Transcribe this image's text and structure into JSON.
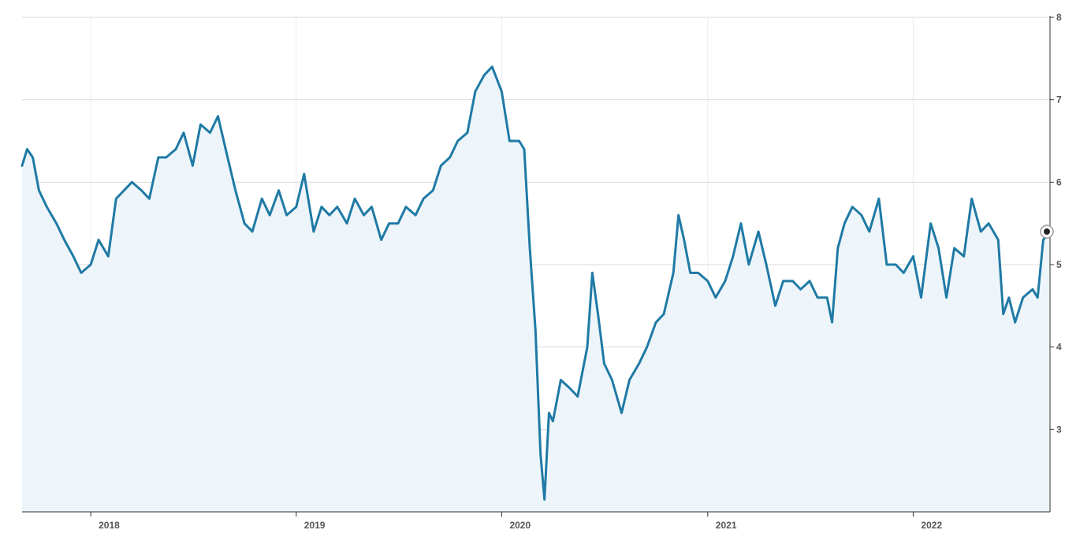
{
  "chart_data": {
    "type": "area",
    "xlabel": "",
    "ylabel": "",
    "x_range": [
      "2017-09-01",
      "2022-09-01"
    ],
    "ylim": [
      2,
      8
    ],
    "yticks": [
      3,
      4,
      5,
      6,
      7,
      8
    ],
    "xticks": [
      "2018",
      "2019",
      "2020",
      "2021",
      "2022"
    ],
    "grid": true,
    "y_axis_side": "right",
    "colors": {
      "line": "#1f7aa5",
      "fill": "#eef5fa",
      "marker": "#222222"
    },
    "series": [
      {
        "points": [
          [
            "2017-09-01",
            6.2
          ],
          [
            "2017-09-10",
            6.4
          ],
          [
            "2017-09-20",
            6.3
          ],
          [
            "2017-10-01",
            5.9
          ],
          [
            "2017-10-15",
            5.7
          ],
          [
            "2017-11-01",
            5.5
          ],
          [
            "2017-11-15",
            5.3
          ],
          [
            "2017-12-01",
            5.1
          ],
          [
            "2017-12-15",
            4.9
          ],
          [
            "2018-01-01",
            5.0
          ],
          [
            "2018-01-15",
            5.3
          ],
          [
            "2018-02-01",
            5.1
          ],
          [
            "2018-02-15",
            5.8
          ],
          [
            "2018-03-01",
            5.9
          ],
          [
            "2018-03-15",
            6.0
          ],
          [
            "2018-04-01",
            5.9
          ],
          [
            "2018-04-15",
            5.8
          ],
          [
            "2018-05-01",
            6.3
          ],
          [
            "2018-05-15",
            6.3
          ],
          [
            "2018-06-01",
            6.4
          ],
          [
            "2018-06-15",
            6.6
          ],
          [
            "2018-07-01",
            6.2
          ],
          [
            "2018-07-15",
            6.7
          ],
          [
            "2018-08-01",
            6.6
          ],
          [
            "2018-08-15",
            6.8
          ],
          [
            "2018-09-01",
            6.3
          ],
          [
            "2018-09-15",
            5.9
          ],
          [
            "2018-10-01",
            5.5
          ],
          [
            "2018-10-15",
            5.4
          ],
          [
            "2018-11-01",
            5.8
          ],
          [
            "2018-11-15",
            5.6
          ],
          [
            "2018-12-01",
            5.9
          ],
          [
            "2018-12-15",
            5.6
          ],
          [
            "2019-01-01",
            5.7
          ],
          [
            "2019-01-15",
            6.1
          ],
          [
            "2019-02-01",
            5.4
          ],
          [
            "2019-02-15",
            5.7
          ],
          [
            "2019-03-01",
            5.6
          ],
          [
            "2019-03-15",
            5.7
          ],
          [
            "2019-04-01",
            5.5
          ],
          [
            "2019-04-15",
            5.8
          ],
          [
            "2019-05-01",
            5.6
          ],
          [
            "2019-05-15",
            5.7
          ],
          [
            "2019-06-01",
            5.3
          ],
          [
            "2019-06-15",
            5.5
          ],
          [
            "2019-07-01",
            5.5
          ],
          [
            "2019-07-15",
            5.7
          ],
          [
            "2019-08-01",
            5.6
          ],
          [
            "2019-08-15",
            5.8
          ],
          [
            "2019-09-01",
            5.9
          ],
          [
            "2019-09-15",
            6.2
          ],
          [
            "2019-10-01",
            6.3
          ],
          [
            "2019-10-15",
            6.5
          ],
          [
            "2019-11-01",
            6.6
          ],
          [
            "2019-11-15",
            7.1
          ],
          [
            "2019-12-01",
            7.3
          ],
          [
            "2019-12-15",
            7.4
          ],
          [
            "2020-01-01",
            7.1
          ],
          [
            "2020-01-15",
            6.5
          ],
          [
            "2020-02-01",
            6.5
          ],
          [
            "2020-02-10",
            6.4
          ],
          [
            "2020-02-20",
            5.2
          ],
          [
            "2020-03-01",
            4.2
          ],
          [
            "2020-03-10",
            2.7
          ],
          [
            "2020-03-17",
            2.15
          ],
          [
            "2020-03-25",
            3.2
          ],
          [
            "2020-04-01",
            3.1
          ],
          [
            "2020-04-15",
            3.6
          ],
          [
            "2020-05-01",
            3.5
          ],
          [
            "2020-05-15",
            3.4
          ],
          [
            "2020-06-01",
            4.0
          ],
          [
            "2020-06-10",
            4.9
          ],
          [
            "2020-06-20",
            4.4
          ],
          [
            "2020-07-01",
            3.8
          ],
          [
            "2020-07-15",
            3.6
          ],
          [
            "2020-08-01",
            3.2
          ],
          [
            "2020-08-15",
            3.6
          ],
          [
            "2020-09-01",
            3.8
          ],
          [
            "2020-09-15",
            4.0
          ],
          [
            "2020-10-01",
            4.3
          ],
          [
            "2020-10-15",
            4.4
          ],
          [
            "2020-11-01",
            4.9
          ],
          [
            "2020-11-10",
            5.6
          ],
          [
            "2020-11-20",
            5.3
          ],
          [
            "2020-12-01",
            4.9
          ],
          [
            "2020-12-15",
            4.9
          ],
          [
            "2021-01-01",
            4.8
          ],
          [
            "2021-01-15",
            4.6
          ],
          [
            "2021-02-01",
            4.8
          ],
          [
            "2021-02-15",
            5.1
          ],
          [
            "2021-03-01",
            5.5
          ],
          [
            "2021-03-15",
            5.0
          ],
          [
            "2021-04-01",
            5.4
          ],
          [
            "2021-04-15",
            5.0
          ],
          [
            "2021-05-01",
            4.5
          ],
          [
            "2021-05-15",
            4.8
          ],
          [
            "2021-06-01",
            4.8
          ],
          [
            "2021-06-15",
            4.7
          ],
          [
            "2021-07-01",
            4.8
          ],
          [
            "2021-07-15",
            4.6
          ],
          [
            "2021-08-01",
            4.6
          ],
          [
            "2021-08-10",
            4.3
          ],
          [
            "2021-08-20",
            5.2
          ],
          [
            "2021-09-01",
            5.5
          ],
          [
            "2021-09-15",
            5.7
          ],
          [
            "2021-10-01",
            5.6
          ],
          [
            "2021-10-15",
            5.4
          ],
          [
            "2021-11-01",
            5.8
          ],
          [
            "2021-11-15",
            5.0
          ],
          [
            "2021-12-01",
            5.0
          ],
          [
            "2021-12-15",
            4.9
          ],
          [
            "2022-01-01",
            5.1
          ],
          [
            "2022-01-15",
            4.6
          ],
          [
            "2022-02-01",
            5.5
          ],
          [
            "2022-02-15",
            5.2
          ],
          [
            "2022-03-01",
            4.6
          ],
          [
            "2022-03-15",
            5.2
          ],
          [
            "2022-04-01",
            5.1
          ],
          [
            "2022-04-15",
            5.8
          ],
          [
            "2022-05-01",
            5.4
          ],
          [
            "2022-05-15",
            5.5
          ],
          [
            "2022-06-01",
            5.3
          ],
          [
            "2022-06-10",
            4.4
          ],
          [
            "2022-06-20",
            4.6
          ],
          [
            "2022-07-01",
            4.3
          ],
          [
            "2022-07-15",
            4.6
          ],
          [
            "2022-08-01",
            4.7
          ],
          [
            "2022-08-10",
            4.6
          ],
          [
            "2022-08-20",
            5.3
          ],
          [
            "2022-09-01",
            5.4
          ]
        ]
      }
    ],
    "last_value_marker": [
      "2022-09-01",
      5.4
    ]
  }
}
